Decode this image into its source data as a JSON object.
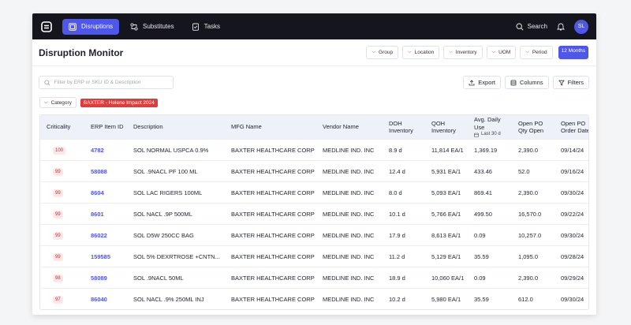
{
  "nav": {
    "items": [
      {
        "label": "Disruptions",
        "icon": "disruptions-icon",
        "active": true
      },
      {
        "label": "Substitutes",
        "icon": "substitutes-icon",
        "active": false
      },
      {
        "label": "Tasks",
        "icon": "tasks-icon",
        "active": false
      }
    ],
    "search_label": "Search",
    "avatar_initials": "SL"
  },
  "header": {
    "title": "Disruption Monitor",
    "filters": [
      "Group",
      "Location",
      "Inventory",
      "UOM",
      "Period"
    ],
    "period_value": "12 Months"
  },
  "toolbar": {
    "search_placeholder": "Filter by ERP or SKU ID & Description",
    "export_label": "Export",
    "columns_label": "Columns",
    "filters_label": "Filters"
  },
  "category": {
    "label": "Category",
    "tag": "BAXTER - Helene Impact 2024"
  },
  "table": {
    "columns": {
      "criticality": "Criticality",
      "erp": "ERP Item ID",
      "description": "Description",
      "mfg": "MFG Name",
      "vendor": "Vendor Name",
      "doh_1": "DOH",
      "doh_2": "Inventory",
      "qoh_1": "QOH",
      "qoh_2": "Inventory",
      "adu": "Avg. Daily Use",
      "adu_sub": "Last 30 d",
      "poq_1": "Open PO",
      "poq_2": "Qty Open",
      "pod_1": "Open PO",
      "pod_2": "Order Date"
    },
    "rows": [
      {
        "criticality": "100",
        "erp": "4782",
        "description": "SOL NORMAL USPCA 0.9%",
        "mfg": "BAXTER HEALTHCARE CORP",
        "vendor": "MEDLINE IND. INC",
        "doh": "8.9 d",
        "qoh": "11,814 EA/1",
        "adu": "1,369.19",
        "poq": "2,390.0",
        "pod": "09/14/24"
      },
      {
        "criticality": "99",
        "erp": "58088",
        "description": "SOL .9NACL PF 100 ML",
        "mfg": "BAXTER HEALTHCARE CORP",
        "vendor": "MEDLINE IND. INC",
        "doh": "12.4 d",
        "qoh": "5,931 EA/1",
        "adu": "433.46",
        "poq": "52.0",
        "pod": "09/16/24"
      },
      {
        "criticality": "99",
        "erp": "8604",
        "description": "SOL LAC RIGERS 100ML",
        "mfg": "BAXTER HEALTHCARE CORP",
        "vendor": "MEDLINE IND. INC",
        "doh": "8.0 d",
        "qoh": "5,093 EA/1",
        "adu": "869.41",
        "poq": "2,390.0",
        "pod": "09/30/24"
      },
      {
        "criticality": "99",
        "erp": "8601",
        "description": "SOL NACL .9P 500ML",
        "mfg": "BAXTER HEALTHCARE CORP",
        "vendor": "MEDLINE IND. INC",
        "doh": "10.1 d",
        "qoh": "5,766 EA/1",
        "adu": "499.50",
        "poq": "16,570.0",
        "pod": "09/22/24"
      },
      {
        "criticality": "99",
        "erp": "86022",
        "description": "SOL D5W 250CC BAG",
        "mfg": "BAXTER HEALTHCARE CORP",
        "vendor": "MEDLINE IND. INC",
        "doh": "17.9 d",
        "qoh": "8,613 EA/1",
        "adu": "0.09",
        "poq": "10,257.0",
        "pod": "09/30/24"
      },
      {
        "criticality": "99",
        "erp": "159585",
        "description": "SOL 5% DEXRTROSE +CNTN...",
        "mfg": "BAXTER HEALTHCARE CORP",
        "vendor": "MEDLINE IND. INC",
        "doh": "11.2 d",
        "qoh": "5,129 EA/1",
        "adu": "35.59",
        "poq": "1,095.0",
        "pod": "09/28/24"
      },
      {
        "criticality": "98",
        "erp": "58089",
        "description": "SOL .9NACL 50ML",
        "mfg": "BAXTER HEALTHCARE CORP",
        "vendor": "MEDLINE IND. INC",
        "doh": "18.9 d",
        "qoh": "10,060 EA/1",
        "adu": "0.09",
        "poq": "2,390.0",
        "pod": "09/29/24"
      },
      {
        "criticality": "97",
        "erp": "86040",
        "description": "SOL NACL .9% 250ML INJ",
        "mfg": "BAXTER HEALTHCARE CORP",
        "vendor": "MEDLINE IND. INC",
        "doh": "10.2 d",
        "qoh": "5,980 EA/1",
        "adu": "35.59",
        "poq": "612.0",
        "pod": "09/30/24"
      }
    ]
  }
}
